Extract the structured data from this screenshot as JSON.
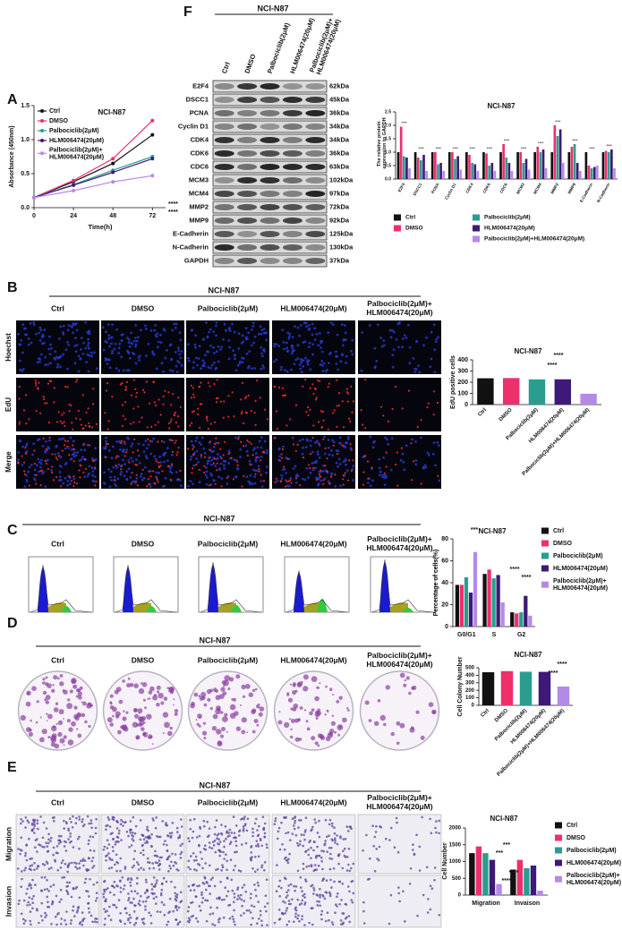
{
  "panel_labels": [
    "A",
    "B",
    "C",
    "D",
    "E",
    "F"
  ],
  "conditions": [
    "Ctrl",
    "DMSO",
    "Palbociclib(2μM)",
    "HLM006474(20μM)",
    "Palbociclib(2μM)+HLM006474(20μM)"
  ],
  "blot": {
    "title": "NCI-N87",
    "proteins": [
      {
        "name": "E2F4",
        "size": "62kDa"
      },
      {
        "name": "DSCC1",
        "size": "45kDa"
      },
      {
        "name": "PCNA",
        "size": "36kDa"
      },
      {
        "name": "Cyclin D1",
        "size": "34kDa"
      },
      {
        "name": "CDK4",
        "size": "34kDa"
      },
      {
        "name": "CDK6",
        "size": "36kDa"
      },
      {
        "name": "CDC6",
        "size": "63kDa"
      },
      {
        "name": "MCM3",
        "size": "102kDa"
      },
      {
        "name": "MCM4",
        "size": "97kDa"
      },
      {
        "name": "MMP2",
        "size": "72kDa"
      },
      {
        "name": "MMP9",
        "size": "92kDa"
      },
      {
        "name": "E-Cadherin",
        "size": "125kDa"
      },
      {
        "name": "N-Cadherin",
        "size": "130kDa"
      },
      {
        "name": "GAPDH",
        "size": "37kDa"
      }
    ]
  },
  "edu_panel": {
    "title": "NCI-N87",
    "rows": [
      "Hoechst",
      "EdU",
      "Merge"
    ]
  },
  "flow_panel": {
    "title": "NCI-N87"
  },
  "colony_panel": {
    "title": "NCI-N87"
  },
  "transwell_panel": {
    "title": "NCI-N87",
    "rows": [
      "Migration",
      "Invasion"
    ]
  },
  "chart_data": [
    {
      "type": "line",
      "title": "NCI-N87",
      "xlabel": "Time(h)",
      "ylabel": "Absorbance (450nm)",
      "x": [
        0,
        24,
        48,
        72
      ],
      "xlim": [
        0,
        80
      ],
      "xticks": [
        0,
        24,
        48,
        72
      ],
      "ylim": [
        0,
        1.5
      ],
      "yticks": [
        {
          "value": 0,
          "label": "0.0"
        },
        0.5,
        {
          "value": 1,
          "label": "1.0"
        },
        1.5
      ],
      "series": [
        {
          "name": "Ctrl",
          "color": "#111111",
          "values": [
            0.15,
            0.38,
            0.65,
            1.07
          ]
        },
        {
          "name": "DMSO",
          "color": "#ef2f6c",
          "values": [
            0.15,
            0.4,
            0.72,
            1.28
          ]
        },
        {
          "name": "Palbociclib(2μM)",
          "color": "#2a9d8f",
          "values": [
            0.15,
            0.34,
            0.55,
            0.75
          ]
        },
        {
          "name": "HLM006474(20μM)",
          "color": "#3d1a78",
          "values": [
            0.15,
            0.33,
            0.52,
            0.72
          ]
        },
        {
          "name": "Palbociclib(2μM)+HLM006474(20μM)",
          "color": "#b58ae6",
          "values": [
            0.15,
            0.25,
            0.38,
            0.47
          ]
        }
      ],
      "annotations": [
        "****",
        "****"
      ]
    },
    {
      "type": "bar",
      "title": "NCI-N87",
      "ylabel": "The relative protein expression to GAPDH",
      "categories": [
        "E2F4",
        "DSCC1",
        "PCNA",
        "Cyclin D1",
        "CDK4",
        "CDK6",
        "CDC6",
        "MCM3",
        "MCM4",
        "MMP2",
        "MMP9",
        "E-Cadherin",
        "N-Cadherin"
      ],
      "ylim": [
        0,
        2.5
      ],
      "yticks": [
        {
          "value": 0,
          "label": "0.0"
        },
        0.5,
        {
          "value": 1,
          "label": "1.0"
        },
        1.5,
        {
          "value": 2,
          "label": "2.0"
        },
        2.5
      ],
      "series": [
        {
          "name": "Ctrl",
          "color": "#111111",
          "values": [
            1,
            1,
            1,
            1,
            1,
            1,
            1,
            1,
            1,
            1,
            1,
            1,
            1
          ]
        },
        {
          "name": "DMSO",
          "color": "#ef2f6c",
          "values": [
            1.95,
            0.8,
            1,
            1,
            0.9,
            0.95,
            1.3,
            1,
            1.2,
            2,
            1.2,
            0.5,
            1.05
          ]
        },
        {
          "name": "Palbociclib(2μM)",
          "color": "#2a9d8f",
          "values": [
            0.85,
            0.7,
            0.55,
            0.75,
            0.6,
            0.5,
            0.8,
            0.6,
            1,
            1.6,
            1.3,
            0.4,
            1
          ]
        },
        {
          "name": "HLM006474(20μM)",
          "color": "#3d1a78",
          "values": [
            0.8,
            0.9,
            0.6,
            0.85,
            0.55,
            0.6,
            0.6,
            0.75,
            1.1,
            1.85,
            0.6,
            0.45,
            1.1
          ]
        },
        {
          "name": "Palbociclib(2μM)+HLM006474(20μM)",
          "color": "#b58ae6",
          "values": [
            0.4,
            0.3,
            0.3,
            0.35,
            0.3,
            0.3,
            0.3,
            0.35,
            0.4,
            0.6,
            0.3,
            0.5,
            0.4
          ]
        }
      ],
      "annotations": [
        "****",
        "****",
        "****",
        "****",
        "****",
        "****",
        "****",
        "****",
        "****",
        "****",
        "****",
        "****",
        "****"
      ]
    },
    {
      "type": "bar",
      "title": "NCI-N87",
      "ylabel": "EdU positive cells",
      "categories": [
        "Ctrl",
        "DMSO",
        "Palbociclib(2μM)",
        "HLM006474(20μM)",
        "Palbociclib(2μM)+HLM006474(20μM)"
      ],
      "values": [
        235,
        237,
        225,
        226,
        97
      ],
      "colors": [
        "#111111",
        "#ef2f6c",
        "#2a9d8f",
        "#3d1a78",
        "#b58ae6"
      ],
      "ylim": [
        0,
        400
      ],
      "yticks": [
        0,
        100,
        200,
        300,
        400
      ],
      "annotations": [
        "****",
        "****"
      ]
    },
    {
      "type": "bar",
      "title": "NCI-N87",
      "ylabel": "Percentage of cells(%)",
      "categories": [
        "G0/G1",
        "S",
        "G2"
      ],
      "ylim": [
        0,
        80
      ],
      "yticks": [
        0,
        20,
        40,
        60,
        80
      ],
      "series": [
        {
          "name": "Ctrl",
          "color": "#111111",
          "values": [
            38,
            48,
            13
          ]
        },
        {
          "name": "DMSO",
          "color": "#ef2f6c",
          "values": [
            38,
            52,
            12
          ]
        },
        {
          "name": "Palbociclib(2μM)",
          "color": "#2a9d8f",
          "values": [
            45,
            44,
            13
          ]
        },
        {
          "name": "HLM006474(20μM)",
          "color": "#3d1a78",
          "values": [
            31,
            47,
            28
          ]
        },
        {
          "name": "Palbociclib(2μM)+HLM006474(20μM)",
          "color": "#b58ae6",
          "values": [
            68,
            22,
            10
          ]
        }
      ],
      "annotations": [
        "***",
        "****",
        "****"
      ]
    },
    {
      "type": "bar",
      "title": "NCI-N87",
      "ylabel": "Cell Colony Number",
      "categories": [
        "Ctrl",
        "DMSO",
        "Palbociclib(2μM)",
        "HLM006474(20μM)",
        "Palbociclib(2μM)+HLM006474(20μM)"
      ],
      "values": [
        440,
        455,
        447,
        445,
        250
      ],
      "colors": [
        "#111111",
        "#ef2f6c",
        "#2a9d8f",
        "#3d1a78",
        "#b58ae6"
      ],
      "ylim": [
        0,
        500
      ],
      "yticks": [
        0,
        100,
        200,
        300,
        400,
        500
      ],
      "annotations": [
        "****",
        "****"
      ]
    },
    {
      "type": "bar",
      "title": "NCI-N87",
      "ylabel": "Cell Number",
      "categories": [
        "Migration",
        "Invaison"
      ],
      "ylim": [
        0,
        2000
      ],
      "yticks": [
        0,
        500,
        1000,
        1500,
        2000
      ],
      "series": [
        {
          "name": "Ctrl",
          "color": "#111111",
          "values": [
            1250,
            760
          ]
        },
        {
          "name": "DMSO",
          "color": "#ef2f6c",
          "values": [
            1450,
            1050
          ]
        },
        {
          "name": "Palbociclib(2μM)",
          "color": "#2a9d8f",
          "values": [
            1250,
            800
          ]
        },
        {
          "name": "HLM006474(20μM)",
          "color": "#3d1a78",
          "values": [
            1050,
            880
          ]
        },
        {
          "name": "Palbociclib(2μM)+HLM006474(20μM)",
          "color": "#b58ae6",
          "values": [
            330,
            130
          ]
        }
      ],
      "annotations": [
        "***",
        "***",
        "****",
        "****"
      ]
    }
  ]
}
